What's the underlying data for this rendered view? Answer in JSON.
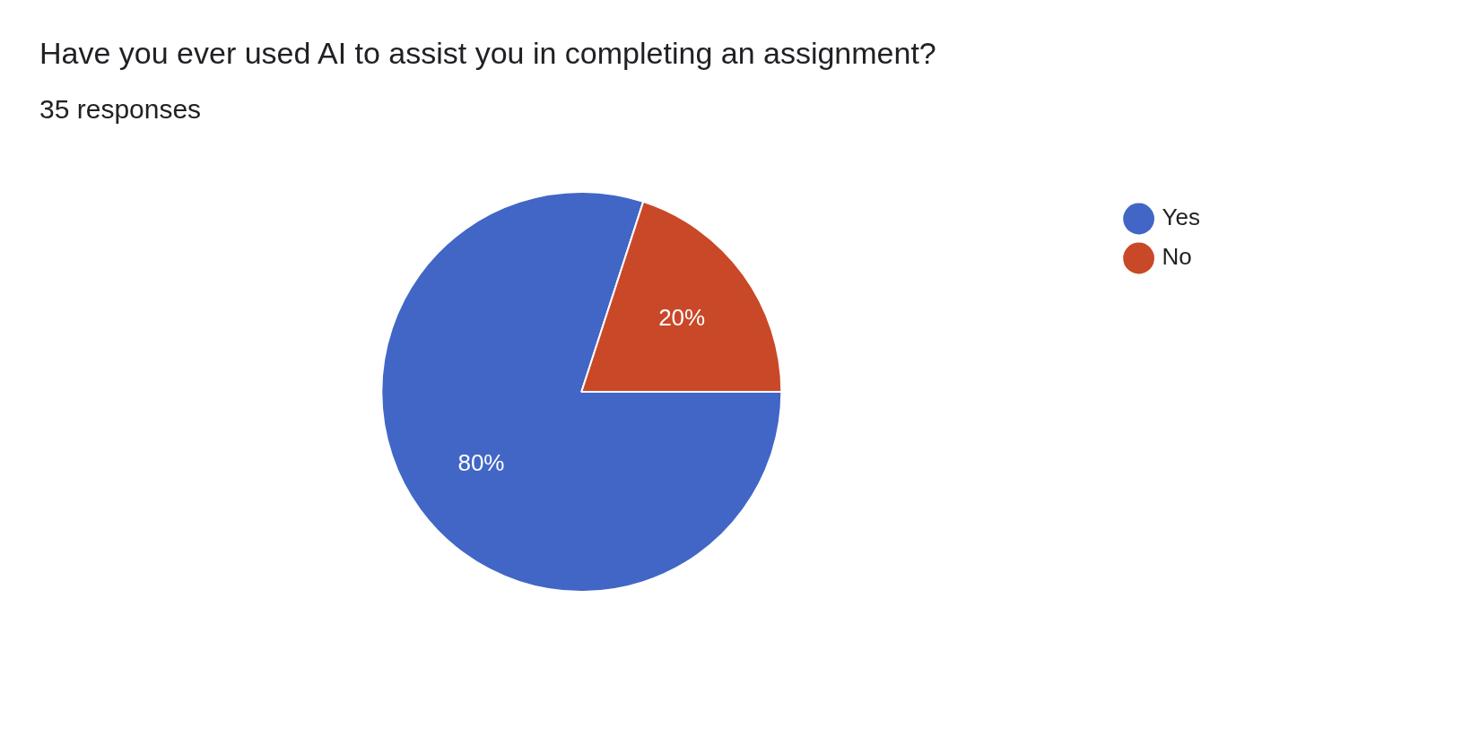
{
  "chart_data": {
    "type": "pie",
    "title": "Have you ever used AI to assist you in completing an assignment?",
    "subtitle": "35 responses",
    "categories": [
      "Yes",
      "No"
    ],
    "values": [
      80,
      20
    ],
    "colors": [
      "#4166c6",
      "#c94828"
    ],
    "value_labels": [
      "80%",
      "20%"
    ],
    "legend": "top right"
  }
}
